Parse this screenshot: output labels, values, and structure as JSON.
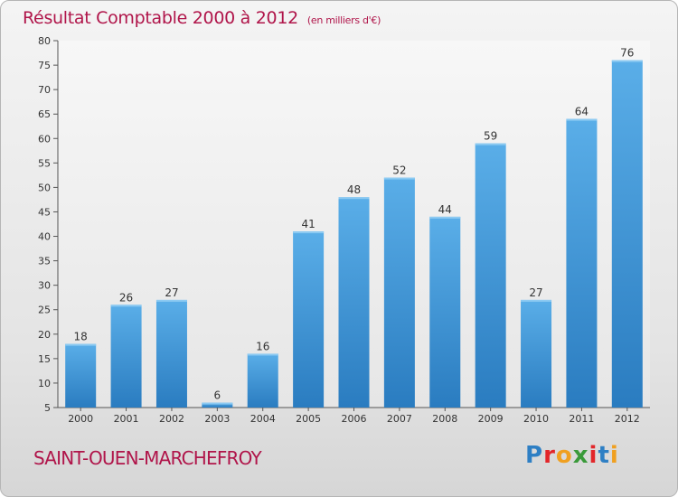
{
  "header": {
    "title": "Résultat Comptable 2000 à 2012",
    "subtitle": "(en milliers d'€)"
  },
  "footer": {
    "commune": "SAINT-OUEN-MARCHEFROY",
    "logo_letters": [
      "P",
      "r",
      "o",
      "x",
      "i",
      "t",
      "i"
    ],
    "logo_colors": [
      "#2e7fc4",
      "#e2262a",
      "#f0a020",
      "#3a9a3a",
      "#e2262a",
      "#2e7fc4",
      "#f0a020"
    ]
  },
  "chart_data": {
    "type": "bar",
    "categories": [
      "2000",
      "2001",
      "2002",
      "2003",
      "2004",
      "2005",
      "2006",
      "2007",
      "2008",
      "2009",
      "2010",
      "2011",
      "2012"
    ],
    "values": [
      18,
      26,
      27,
      6,
      16,
      41,
      48,
      52,
      44,
      59,
      27,
      64,
      76
    ],
    "data_labels": [
      "18",
      "26",
      "27",
      "6",
      "16",
      "41",
      "48",
      "52",
      "44",
      "59",
      "27",
      "64",
      "76"
    ],
    "yticks": [
      5,
      10,
      15,
      20,
      25,
      30,
      35,
      40,
      45,
      50,
      55,
      60,
      65,
      70,
      75,
      80
    ],
    "ylim": [
      5,
      80
    ],
    "xlabel": "",
    "ylabel": "",
    "grid": false,
    "colors": {
      "bar_top": "#5aaee8",
      "bar_bottom": "#2a7cc0",
      "bar_highlight": "#8ccaf2",
      "axis": "#555555",
      "text": "#333333",
      "plot_bg_top": "#f7f7f7",
      "plot_bg_bottom": "#e6e6e6"
    }
  }
}
